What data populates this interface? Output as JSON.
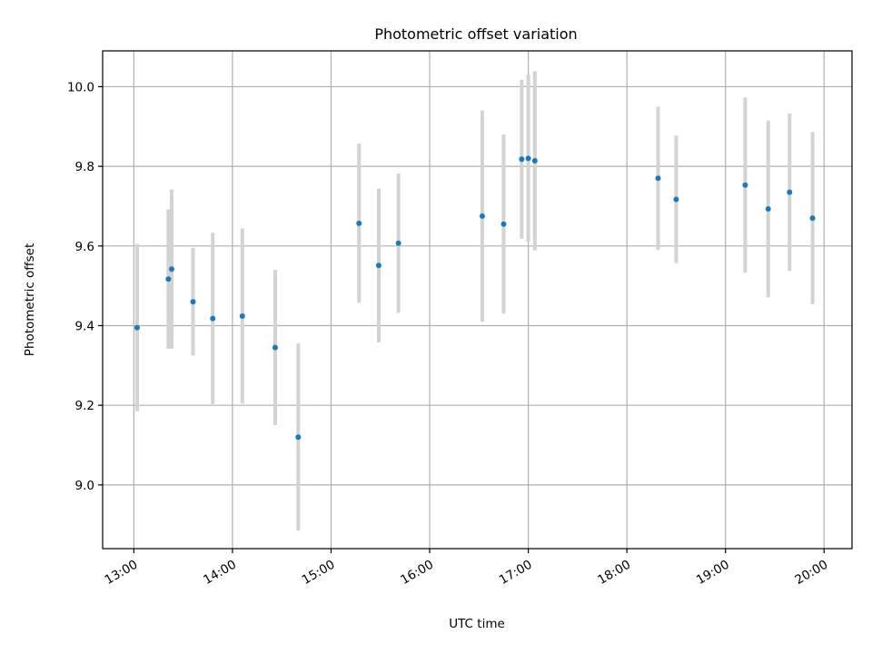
{
  "chart_data": {
    "type": "scatter",
    "title": "Photometric offset variation",
    "xlabel": "UTC time",
    "ylabel": "Photometric offset",
    "x_range": [
      "12:41",
      "20:17"
    ],
    "ylim": [
      8.84,
      10.09
    ],
    "grid": true,
    "x_ticks": [
      "13:00",
      "14:00",
      "15:00",
      "16:00",
      "17:00",
      "18:00",
      "19:00",
      "20:00"
    ],
    "y_ticks": [
      "9.0",
      "9.2",
      "9.4",
      "9.6",
      "9.8",
      "10.0"
    ],
    "y_tick_values": [
      9.0,
      9.2,
      9.4,
      9.6,
      9.8,
      10.0
    ],
    "marker_color": "#1f77b4",
    "errorbar_color": "#d3d3d3",
    "points": [
      {
        "time": "13:02",
        "y": 9.395,
        "err": 0.21
      },
      {
        "time": "13:21",
        "y": 9.517,
        "err": 0.175
      },
      {
        "time": "13:23",
        "y": 9.542,
        "err": 0.2
      },
      {
        "time": "13:36",
        "y": 9.46,
        "err": 0.135
      },
      {
        "time": "13:48",
        "y": 9.418,
        "err": 0.215
      },
      {
        "time": "14:06",
        "y": 9.424,
        "err": 0.22
      },
      {
        "time": "14:26",
        "y": 9.345,
        "err": 0.195
      },
      {
        "time": "14:40",
        "y": 9.12,
        "err": 0.235
      },
      {
        "time": "15:17",
        "y": 9.657,
        "err": 0.2
      },
      {
        "time": "15:29",
        "y": 9.551,
        "err": 0.193
      },
      {
        "time": "15:41",
        "y": 9.607,
        "err": 0.175
      },
      {
        "time": "16:32",
        "y": 9.675,
        "err": 0.265
      },
      {
        "time": "16:45",
        "y": 9.655,
        "err": 0.225
      },
      {
        "time": "16:56",
        "y": 9.818,
        "err": 0.2
      },
      {
        "time": "17:00",
        "y": 9.82,
        "err": 0.21
      },
      {
        "time": "17:04",
        "y": 9.814,
        "err": 0.225
      },
      {
        "time": "18:19",
        "y": 9.77,
        "err": 0.18
      },
      {
        "time": "18:30",
        "y": 9.717,
        "err": 0.16
      },
      {
        "time": "19:12",
        "y": 9.753,
        "err": 0.22
      },
      {
        "time": "19:26",
        "y": 9.693,
        "err": 0.222
      },
      {
        "time": "19:39",
        "y": 9.735,
        "err": 0.198
      },
      {
        "time": "19:53",
        "y": 9.67,
        "err": 0.216
      }
    ]
  }
}
